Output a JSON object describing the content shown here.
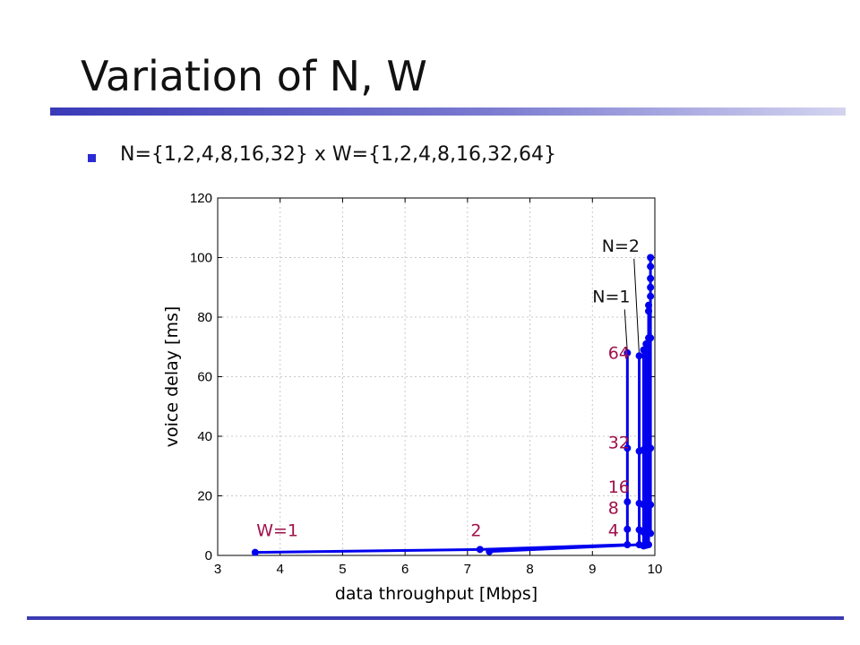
{
  "slide": {
    "title": "Variation of N, W",
    "bullet": "N={1,2,4,8,16,32} x W={1,2,4,8,16,32,64}"
  },
  "colors": {
    "series": "#0000ee",
    "annotation": "#a0104a",
    "title_rule_left": "#3a3ab8",
    "title_rule_right": "#ccccee",
    "bullet": "#2b2bd4"
  },
  "chart_data": {
    "type": "line",
    "xlabel": "data throughput [Mbps]",
    "ylabel": "voice delay [ms]",
    "xlim": [
      3,
      10
    ],
    "ylim": [
      0,
      120
    ],
    "xticks": [
      3,
      4,
      5,
      6,
      7,
      8,
      9,
      10
    ],
    "yticks": [
      0,
      20,
      40,
      60,
      80,
      100,
      120
    ],
    "grid": true,
    "series": [
      {
        "name": "N=1",
        "points": [
          [
            3.6,
            1.0
          ],
          [
            7.2,
            2.0
          ],
          [
            9.56,
            3.6
          ],
          [
            9.56,
            8.8
          ],
          [
            9.56,
            18.0
          ],
          [
            9.56,
            36.0
          ],
          [
            9.56,
            68.0
          ]
        ]
      },
      {
        "name": "N=2",
        "points": [
          [
            7.35,
            1.3
          ],
          [
            9.75,
            3.6
          ],
          [
            9.75,
            8.6
          ],
          [
            9.75,
            17.5
          ],
          [
            9.75,
            35.0
          ],
          [
            9.75,
            67.0
          ]
        ]
      },
      {
        "points": [
          [
            9.82,
            3.2
          ],
          [
            9.82,
            7.8
          ],
          [
            9.82,
            17.0
          ],
          [
            9.82,
            35.5
          ],
          [
            9.82,
            69.0
          ]
        ]
      },
      {
        "points": [
          [
            9.86,
            3.4
          ],
          [
            9.86,
            7.5
          ],
          [
            9.86,
            17.5
          ],
          [
            9.86,
            36.0
          ],
          [
            9.86,
            71.0
          ]
        ]
      },
      {
        "points": [
          [
            9.9,
            3.6
          ],
          [
            9.9,
            7.6
          ],
          [
            9.9,
            17.0
          ],
          [
            9.9,
            36.0
          ],
          [
            9.9,
            73.0
          ],
          [
            9.9,
            82.0
          ],
          [
            9.9,
            84.0
          ]
        ]
      },
      {
        "points": [
          [
            9.93,
            7.4
          ],
          [
            9.93,
            17.0
          ],
          [
            9.93,
            36.0
          ],
          [
            9.93,
            73.0
          ],
          [
            9.93,
            87.0
          ],
          [
            9.93,
            90.0
          ],
          [
            9.93,
            93.0
          ],
          [
            9.93,
            97.0
          ],
          [
            9.93,
            100.0
          ]
        ]
      }
    ],
    "annotations": [
      {
        "text": "W=1",
        "x": 3.62,
        "y": 6.5,
        "style": "value"
      },
      {
        "text": "2",
        "x": 7.05,
        "y": 6.5,
        "style": "value"
      },
      {
        "text": "4",
        "x": 9.25,
        "y": 6.5,
        "style": "value"
      },
      {
        "text": "8",
        "x": 9.25,
        "y": 14.0,
        "style": "value"
      },
      {
        "text": "16",
        "x": 9.25,
        "y": 21.0,
        "style": "value"
      },
      {
        "text": "32",
        "x": 9.25,
        "y": 36.0,
        "style": "value"
      },
      {
        "text": "64",
        "x": 9.25,
        "y": 66.0,
        "style": "value"
      }
    ],
    "callouts": [
      {
        "text": "N=1",
        "x": 9.0,
        "y": 85.0,
        "to": [
          9.56,
          68.0
        ]
      },
      {
        "text": "N=2",
        "x": 9.15,
        "y": 102.0,
        "to": [
          9.75,
          67.0
        ]
      }
    ]
  }
}
